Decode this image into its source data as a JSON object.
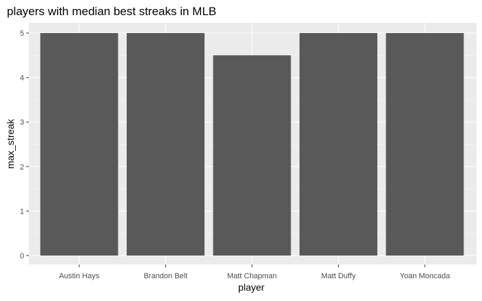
{
  "chart_data": {
    "type": "bar",
    "title": "players with median best streaks in MLB",
    "xlabel": "player",
    "ylabel": "max_streak",
    "categories": [
      "Austin Hays",
      "Brandon Belt",
      "Matt Chapman",
      "Matt Duffy",
      "Yoan Moncada"
    ],
    "values": [
      5,
      5,
      4.5,
      5,
      5
    ],
    "yticks": [
      0,
      1,
      2,
      3,
      4,
      5
    ],
    "ylim": [
      0,
      5
    ],
    "grid": true,
    "legend": "none",
    "colors": {
      "bar": "#595959",
      "panel": "#ebebeb",
      "grid_major": "#ffffff",
      "text": "#000000",
      "tick_text": "#4d4d4d"
    }
  }
}
